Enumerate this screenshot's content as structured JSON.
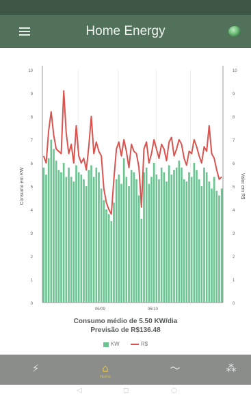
{
  "app": {
    "title": "Home Energy"
  },
  "status_bar": {
    "left_text": "",
    "right_text": ""
  },
  "icons": {
    "menu": "menu-icon",
    "top_right": "power-orb-icon",
    "nav": [
      "plug-icon",
      "home-icon",
      "trend-line-icon",
      "network-icon"
    ]
  },
  "caption": {
    "line1": "Consumo médio de 5.50 KW/dia",
    "line2": "Previsão de R$136.48"
  },
  "legend": {
    "kw": "KW",
    "rs": "R$"
  },
  "bottom_nav": {
    "items": [
      {
        "icon": "⚡",
        "label": ""
      },
      {
        "icon": "⌂",
        "label": "Home"
      },
      {
        "icon": "〜",
        "label": ""
      },
      {
        "icon": "⁂",
        "label": ""
      }
    ],
    "active_index": 1
  },
  "system_nav": {
    "back": "◁",
    "home": "○",
    "recent": "◻"
  },
  "colors": {
    "app_bar": "#52715a",
    "bar": "#6cc492",
    "line": "#d9534f",
    "nav_active": "#e0bf52"
  },
  "chart_data": {
    "type": "bar",
    "title": "",
    "ylabel": "Consumo em KW",
    "y2label": "Valor em R$",
    "ylim": [
      0,
      10
    ],
    "y2lim": [
      0,
      10
    ],
    "yticks": [
      "0",
      "1",
      "2",
      "3",
      "4",
      "5",
      "6",
      "7",
      "8",
      "9",
      "10"
    ],
    "y2ticks": [
      "0",
      "1",
      "2",
      "3",
      "4",
      "5",
      "6",
      "7",
      "8",
      "9",
      "10"
    ],
    "x_tick_labels": [
      {
        "label": "05/09",
        "index": 23
      },
      {
        "label": "05/10",
        "index": 44
      }
    ],
    "grid": true,
    "legend_position": "bottom",
    "series": [
      {
        "name": "KW",
        "type": "bar",
        "values": [
          5.8,
          5.5,
          6.2,
          7.0,
          6.6,
          6.1,
          5.7,
          5.6,
          6.0,
          5.4,
          5.8,
          5.4,
          5.2,
          5.9,
          5.6,
          5.5,
          5.3,
          5.0,
          5.7,
          5.9,
          5.4,
          5.8,
          5.6,
          4.9,
          4.4,
          4.0,
          3.8,
          3.5,
          4.3,
          5.3,
          5.5,
          5.1,
          6.2,
          5.4,
          5.0,
          5.7,
          5.6,
          5.3,
          4.6,
          3.6,
          5.6,
          5.8,
          5.1,
          5.4,
          6.0,
          5.5,
          5.3,
          5.8,
          5.6,
          5.2,
          5.9,
          5.5,
          5.7,
          5.8,
          6.1,
          5.8,
          5.3,
          5.2,
          5.6,
          5.4,
          6.0,
          5.7,
          5.3,
          5.0,
          5.8,
          5.6,
          5.2,
          4.9,
          5.4,
          4.8,
          4.6,
          4.9
        ]
      },
      {
        "name": "R$",
        "type": "line",
        "values": [
          6.3,
          6.0,
          7.4,
          8.2,
          7.2,
          6.6,
          6.5,
          6.4,
          9.1,
          7.3,
          6.4,
          6.8,
          6.0,
          7.6,
          6.3,
          6.0,
          6.2,
          5.7,
          6.7,
          8.0,
          6.4,
          6.9,
          6.5,
          6.3,
          4.9,
          4.3,
          4.0,
          3.8,
          5.3,
          6.6,
          6.9,
          6.3,
          7.0,
          6.5,
          5.8,
          6.8,
          6.5,
          6.4,
          5.8,
          4.1,
          6.6,
          6.9,
          6.0,
          6.4,
          7.0,
          6.6,
          6.2,
          6.8,
          6.6,
          6.1,
          6.9,
          7.1,
          6.3,
          6.6,
          7.0,
          6.8,
          6.2,
          5.9,
          6.5,
          6.4,
          7.0,
          6.7,
          6.3,
          6.0,
          6.7,
          6.5,
          7.6,
          6.4,
          6.2,
          5.7,
          5.3,
          5.4
        ]
      }
    ]
  }
}
